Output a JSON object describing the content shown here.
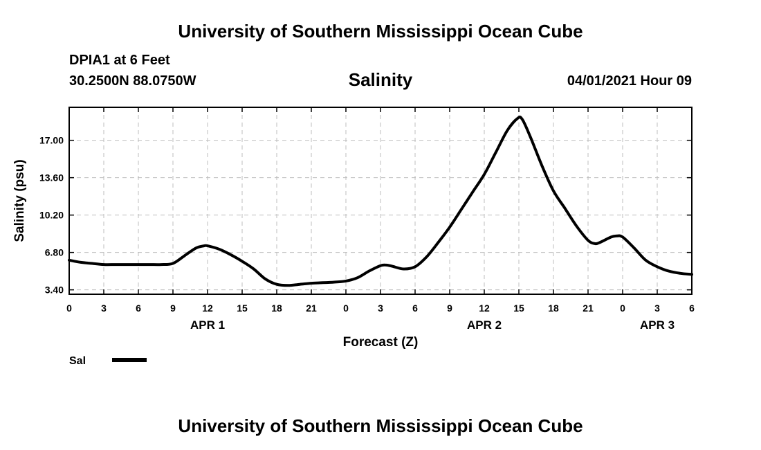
{
  "header": {
    "title": "University of Southern Mississippi Ocean Cube",
    "station": "DPIA1 at 6 Feet",
    "coords": "30.2500N  88.0750W",
    "date": "04/01/2021 Hour 09"
  },
  "footer": {
    "title": "University of Southern Mississippi Ocean Cube"
  },
  "legend": {
    "label": "Sal"
  },
  "chart_data": {
    "type": "line",
    "title": "Salinity",
    "xlabel": "Forecast (Z)",
    "ylabel": "Salinity (psu)",
    "x_tick_labels": [
      "0",
      "3",
      "6",
      "9",
      "12",
      "15",
      "18",
      "21",
      "0",
      "3",
      "6",
      "9",
      "12",
      "15",
      "18",
      "21",
      "0",
      "3",
      "6"
    ],
    "x_ticks_hours": [
      0,
      3,
      6,
      9,
      12,
      15,
      18,
      21,
      24,
      27,
      30,
      33,
      36,
      39,
      42,
      45,
      48,
      51,
      54
    ],
    "day_labels": [
      {
        "label": "APR 1",
        "hour": 12
      },
      {
        "label": "APR 2",
        "hour": 36
      },
      {
        "label": "APR 3",
        "hour": 51
      }
    ],
    "y_tick_labels": [
      "3.40",
      "6.80",
      "10.20",
      "13.60",
      "17.00"
    ],
    "y_ticks": [
      3.4,
      6.8,
      10.2,
      13.6,
      17.0
    ],
    "xlim": [
      0,
      54
    ],
    "ylim": [
      3.0,
      20.0
    ],
    "grid": true,
    "series": [
      {
        "name": "Sal",
        "color": "#000000",
        "x": [
          0,
          1,
          2,
          3,
          4,
          5,
          6,
          7,
          8,
          9,
          10,
          11,
          11.7,
          12,
          13,
          14,
          15,
          16,
          17,
          18,
          19,
          20,
          21,
          22,
          23,
          24,
          25,
          26,
          27,
          27.5,
          28,
          29,
          30,
          31,
          32,
          33,
          34,
          35,
          36,
          37,
          38,
          38.9,
          39.3,
          40,
          41,
          42,
          43,
          44,
          45,
          45.6,
          46,
          47,
          47.5,
          48,
          49,
          50,
          51,
          52,
          53,
          54
        ],
        "y": [
          6.1,
          5.9,
          5.8,
          5.7,
          5.7,
          5.7,
          5.7,
          5.7,
          5.7,
          5.8,
          6.5,
          7.2,
          7.4,
          7.4,
          7.1,
          6.6,
          6.0,
          5.3,
          4.4,
          3.9,
          3.8,
          3.9,
          4.0,
          4.05,
          4.1,
          4.2,
          4.5,
          5.1,
          5.6,
          5.65,
          5.55,
          5.3,
          5.5,
          6.4,
          7.7,
          9.1,
          10.7,
          12.3,
          13.9,
          15.9,
          17.9,
          19.0,
          18.9,
          17.3,
          14.7,
          12.4,
          10.8,
          9.2,
          7.9,
          7.6,
          7.7,
          8.2,
          8.3,
          8.2,
          7.2,
          6.1,
          5.5,
          5.1,
          4.9,
          4.8
        ]
      }
    ]
  }
}
